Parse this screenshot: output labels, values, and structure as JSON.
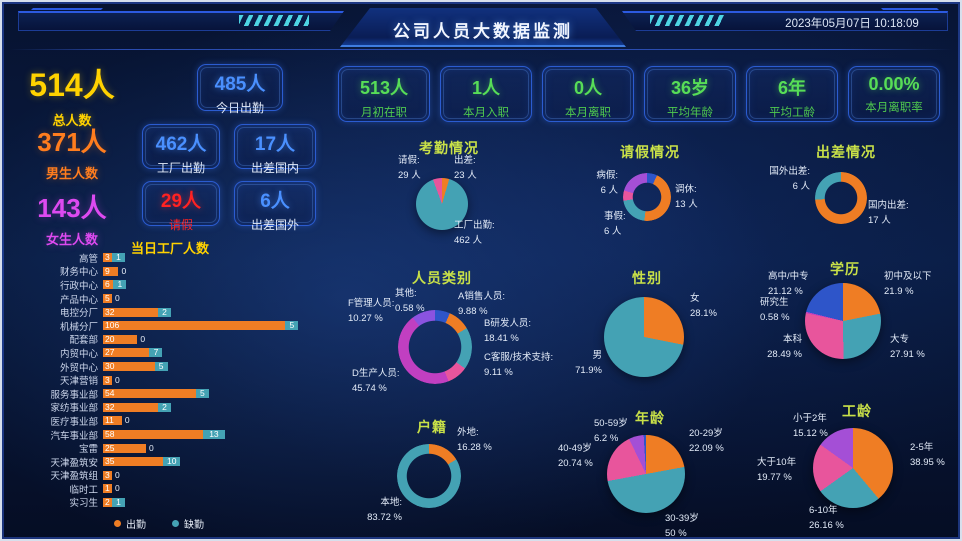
{
  "header": {
    "title": "公司人员大数据监测",
    "datetime": "2023年05月07日 10:18:09"
  },
  "colors": {
    "orange": "#ef7d24",
    "teal": "#44a2b4",
    "pink": "#e8559c",
    "magenta": "#c13fc1",
    "purple": "#a44fd6",
    "blue": "#2e55c9",
    "value_blue": "#4a90ff",
    "kpi_green": "#57dd57",
    "alert_red": "#ff2222",
    "chart_title_green": "#c8e048",
    "total_yellow": "#ffd200",
    "male_orange": "#ff7d1e",
    "female_magenta": "#dd4af0"
  },
  "big_stats": [
    {
      "value": "514人",
      "label": "总人数"
    },
    {
      "value": "371人",
      "label": "男生人数"
    },
    {
      "value": "143人",
      "label": "女生人数"
    }
  ],
  "boxes": {
    "today": {
      "value": "485人",
      "label": "今日出勤"
    },
    "factory": {
      "value": "462人",
      "label": "工厂出勤"
    },
    "trip_domestic": {
      "value": "17人",
      "label": "出差国内"
    },
    "leave": {
      "value": "29人",
      "label": "请假"
    },
    "trip_abroad": {
      "value": "6人",
      "label": "出差国外"
    }
  },
  "kpi_boxes": [
    {
      "value": "513人",
      "label": "月初在职"
    },
    {
      "value": "1人",
      "label": "本月入职"
    },
    {
      "value": "0人",
      "label": "本月离职"
    },
    {
      "value": "36岁",
      "label": "平均年龄"
    },
    {
      "value": "6年",
      "label": "平均工龄"
    },
    {
      "value": "0.00%",
      "label": "本月离职率"
    }
  ],
  "chart_data": [
    {
      "type": "pie",
      "title": "考勤情况",
      "unit": "人",
      "slices": [
        {
          "name": "出差",
          "value": 23,
          "color": "#ef7d24"
        },
        {
          "name": "工厂出勤",
          "value": 462,
          "color": "#44a2b4"
        },
        {
          "name": "请假",
          "value": 29,
          "color": "#e8559c"
        }
      ],
      "labels": [
        {
          "t": "请假:",
          "v": "29 人"
        },
        {
          "t": "出差:",
          "v": "23 人"
        },
        {
          "t": "工厂出勤:",
          "v": "462 人"
        }
      ]
    },
    {
      "type": "donut",
      "title": "请假情况",
      "unit": "人",
      "slices": [
        {
          "name": "",
          "value": 2,
          "color": "#2e55c9"
        },
        {
          "name": "调休",
          "value": 13,
          "color": "#ef7d24"
        },
        {
          "name": "事假",
          "value": 6,
          "color": "#44a2b4"
        },
        {
          "name": "",
          "value": 2,
          "color": "#e8559c"
        },
        {
          "name": "病假",
          "value": 6,
          "color": "#a44fd6"
        }
      ],
      "labels": [
        {
          "t": "病假:",
          "v": "6 人"
        },
        {
          "t": "调休:",
          "v": "13 人"
        },
        {
          "t": "事假:",
          "v": "6 人"
        }
      ]
    },
    {
      "type": "donut",
      "title": "出差情况",
      "unit": "人",
      "slices": [
        {
          "name": "国内出差",
          "value": 17,
          "color": "#ef7d24"
        },
        {
          "name": "国外出差",
          "value": 6,
          "color": "#44a2b4"
        }
      ],
      "labels": [
        {
          "t": "国外出差:",
          "v": "6 人"
        },
        {
          "t": "国内出差:",
          "v": "17 人"
        }
      ]
    },
    {
      "type": "donut",
      "title": "人员类别",
      "unit": "%",
      "slices": [
        {
          "name": "其他",
          "value": 0.58,
          "color": "#2e55c9"
        },
        {
          "name": "",
          "value": 6.01,
          "color": "#2e55c9"
        },
        {
          "name": "A销售人员",
          "value": 9.88,
          "color": "#ef7d24"
        },
        {
          "name": "B研发人员",
          "value": 18.41,
          "color": "#44a2b4"
        },
        {
          "name": "C客服/技术支持",
          "value": 9.11,
          "color": "#e8559c"
        },
        {
          "name": "D生产人员",
          "value": 45.74,
          "color": "#c13fc1"
        },
        {
          "name": "F管理人员",
          "value": 10.27,
          "color": "#8a53e0"
        }
      ],
      "labels": [
        {
          "t": "其他:",
          "v": "0.58 %"
        },
        {
          "t": "A销售人员:",
          "v": "9.88 %"
        },
        {
          "t": "B研发人员:",
          "v": "18.41 %"
        },
        {
          "t": "C客服/技术支持:",
          "v": "9.11 %"
        },
        {
          "t": "D生产人员:",
          "v": "45.74 %"
        },
        {
          "t": "F管理人员:",
          "v": "10.27 %"
        }
      ]
    },
    {
      "type": "pie",
      "title": "性别",
      "unit": "%",
      "slices": [
        {
          "name": "女",
          "value": 28.1,
          "color": "#ef7d24"
        },
        {
          "name": "男",
          "value": 71.9,
          "color": "#44a2b4"
        }
      ],
      "labels": [
        {
          "t": "女",
          "v": "28.1%"
        },
        {
          "t": "男",
          "v": "71.9%"
        }
      ]
    },
    {
      "type": "pie",
      "title": "学历",
      "unit": "%",
      "slices": [
        {
          "name": "初中及以下",
          "value": 21.9,
          "color": "#ef7d24"
        },
        {
          "name": "大专",
          "value": 27.91,
          "color": "#44a2b4"
        },
        {
          "name": "本科",
          "value": 28.49,
          "color": "#e8559c"
        },
        {
          "name": "研究生",
          "value": 0.58,
          "color": "#c13fc1"
        },
        {
          "name": "高中/中专",
          "value": 21.12,
          "color": "#2e55c9"
        }
      ],
      "labels": [
        {
          "t": "高中/中专",
          "v": "21.12 %"
        },
        {
          "t": "初中及以下",
          "v": "21.9 %"
        },
        {
          "t": "研究生",
          "v": "0.58 %"
        },
        {
          "t": "本科",
          "v": "28.49 %"
        },
        {
          "t": "大专",
          "v": "27.91 %"
        }
      ]
    },
    {
      "type": "donut",
      "title": "户籍",
      "unit": "%",
      "slices": [
        {
          "name": "外地",
          "value": 16.28,
          "color": "#ef7d24"
        },
        {
          "name": "本地",
          "value": 83.72,
          "color": "#44a2b4"
        }
      ],
      "labels": [
        {
          "t": "外地:",
          "v": "16.28 %"
        },
        {
          "t": "本地:",
          "v": "83.72 %"
        }
      ]
    },
    {
      "type": "pie",
      "title": "年龄",
      "unit": "%",
      "slices": [
        {
          "name": "20-29岁",
          "value": 22.09,
          "color": "#ef7d24"
        },
        {
          "name": "30-39岁",
          "value": 50,
          "color": "#44a2b4"
        },
        {
          "name": "40-49岁",
          "value": 20.74,
          "color": "#e8559c"
        },
        {
          "name": "50-59岁",
          "value": 6.2,
          "color": "#a44fd6"
        },
        {
          "name": "",
          "value": 0.97,
          "color": "#2e55c9"
        }
      ],
      "labels": [
        {
          "t": "50-59岁",
          "v": "6.2 %"
        },
        {
          "t": "20-29岁",
          "v": "22.09 %"
        },
        {
          "t": "40-49岁",
          "v": "20.74 %"
        },
        {
          "t": "30-39岁",
          "v": "50 %"
        }
      ]
    },
    {
      "type": "pie",
      "title": "工龄",
      "unit": "%",
      "slices": [
        {
          "name": "2-5年",
          "value": 38.95,
          "color": "#ef7d24"
        },
        {
          "name": "6-10年",
          "value": 26.16,
          "color": "#44a2b4"
        },
        {
          "name": "大于10年",
          "value": 19.77,
          "color": "#e8559c"
        },
        {
          "name": "小于2年",
          "value": 15.12,
          "color": "#a44fd6"
        }
      ],
      "labels": [
        {
          "t": "小于2年",
          "v": "15.12 %"
        },
        {
          "t": "2-5年",
          "v": "38.95 %"
        },
        {
          "t": "大于10年",
          "v": "19.77 %"
        },
        {
          "t": "6-10年",
          "v": "26.16 %"
        }
      ]
    },
    {
      "type": "bar",
      "title": "当日工厂人数",
      "categories": [
        "高管",
        "财务中心",
        "行政中心",
        "产品中心",
        "电控分厂",
        "机械分厂",
        "配套部",
        "内贸中心",
        "外贸中心",
        "天津营销",
        "服务事业部",
        "家纺事业部",
        "医疗事业部",
        "汽车事业部",
        "宝雷",
        "天津盈筑安",
        "天津盈筑组",
        "临时工",
        "实习生"
      ],
      "series": [
        {
          "name": "出勤",
          "color": "#ef7d24",
          "values": [
            3,
            9,
            6,
            5,
            32,
            106,
            20,
            27,
            30,
            3,
            54,
            32,
            11,
            58,
            25,
            35,
            3,
            1,
            2
          ]
        },
        {
          "name": "缺勤",
          "color": "#44a2b4",
          "values": [
            1,
            0,
            1,
            0,
            2,
            5,
            0,
            7,
            5,
            0,
            5,
            2,
            0,
            13,
            0,
            10,
            0,
            0,
            1
          ]
        }
      ]
    }
  ]
}
